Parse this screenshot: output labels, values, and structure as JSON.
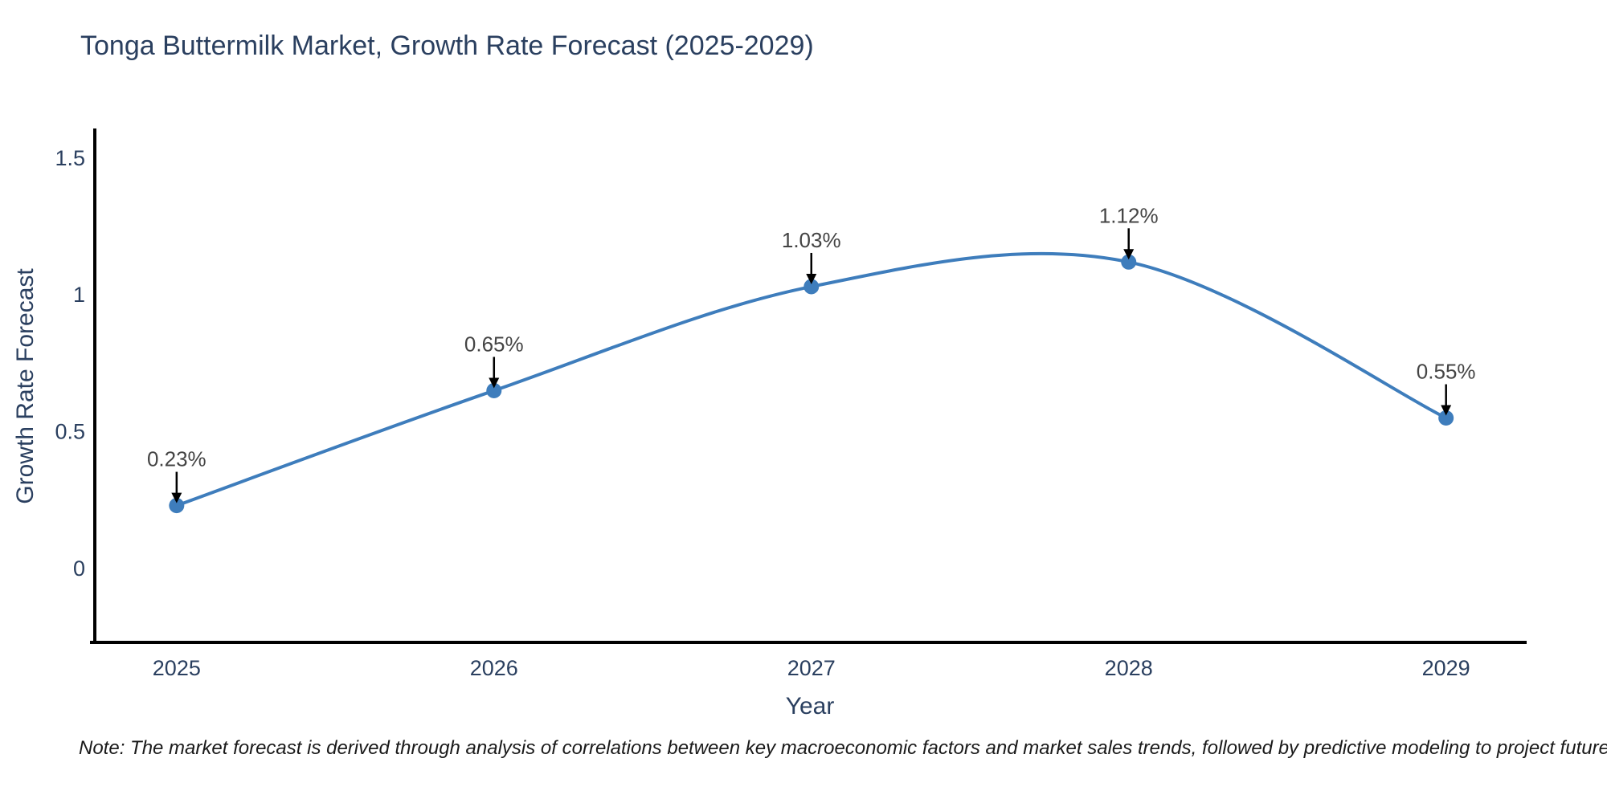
{
  "note": "Note: The market forecast is derived through analysis of correlations between key macroeconomic factors and market sales trends, followed by predictive modeling to project future sales",
  "colors": {
    "line": "#3e7dbc",
    "marker": "#3e7dbc",
    "title_text": "#2a3f5f",
    "tick_text": "#2a3f5f",
    "annotation_text": "#444444",
    "arrow": "#000000",
    "axis_line": "#000000",
    "background": "#ffffff"
  },
  "chart_data": {
    "type": "line",
    "title": "Tonga Buttermilk Market, Growth Rate Forecast (2025-2029)",
    "xlabel": "Year",
    "ylabel": "Growth Rate Forecast",
    "categories": [
      2025,
      2026,
      2027,
      2028,
      2029
    ],
    "values": [
      0.23,
      0.65,
      1.03,
      1.12,
      0.55
    ],
    "point_labels": [
      "0.23%",
      "0.65%",
      "1.03%",
      "1.12%",
      "0.55%"
    ],
    "x_tick_labels": [
      "2025",
      "2026",
      "2027",
      "2028",
      "2029"
    ],
    "y_ticks": [
      0,
      0.5,
      1,
      1.5
    ],
    "y_tick_labels": [
      "0",
      "0.5",
      "1",
      "1.5"
    ],
    "xlim": [
      2024.727,
      2029.254
    ],
    "ylim": [
      -0.276,
      1.608
    ],
    "line_shape": "spline",
    "grid": false,
    "legend": "none",
    "annotations_have_arrows": true
  }
}
